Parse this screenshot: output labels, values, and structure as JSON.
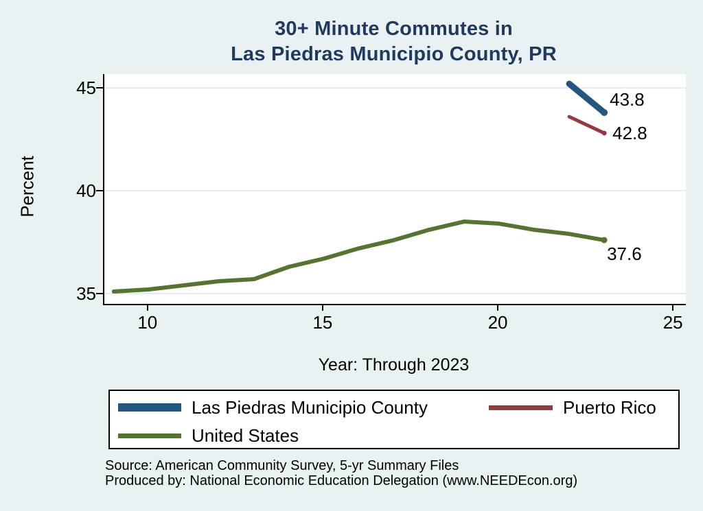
{
  "page": {
    "title_line1": "30+ Minute Commutes in",
    "title_line2": "Las Piedras Municipio County, PR",
    "footer_line1": "Source: American Community Survey, 5-yr Summary Files",
    "footer_line2": "Produced by: National Economic Education Delegation (www.NEEDEcon.org)",
    "colors": {
      "background": "#e9f1f2",
      "plot_background": "#ffffff",
      "grid": "#e3edf0",
      "title": "#1f3a5f",
      "axis": "#000000"
    }
  },
  "chart_data": {
    "type": "line",
    "title": "30+ Minute Commutes in Las Piedras Municipio County, PR",
    "xlabel": "Year: Through 2023",
    "ylabel": "Percent",
    "x_ticks": [
      10,
      15,
      20,
      25
    ],
    "y_ticks": [
      35,
      40,
      45
    ],
    "xlim": [
      8.73,
      25.33
    ],
    "ylim": [
      34.5,
      45.67
    ],
    "grid": "horizontal",
    "legend_position": "bottom",
    "series": [
      {
        "name": "Las Piedras Municipio County",
        "color": "#23577d",
        "line_width": 9,
        "marker_radius": 5,
        "x": [
          22,
          23
        ],
        "values": [
          45.2,
          43.8
        ],
        "end_label": "43.8"
      },
      {
        "name": "Puerto Rico",
        "color": "#97383d",
        "line_width": 5,
        "marker_radius": 3.5,
        "x": [
          22,
          23
        ],
        "values": [
          43.6,
          42.8
        ],
        "end_label": "42.8"
      },
      {
        "name": "United States",
        "color": "#55752f",
        "line_width": 6,
        "marker_radius": 4.5,
        "x": [
          9,
          10,
          11,
          12,
          13,
          14,
          15,
          16,
          17,
          18,
          19,
          20,
          21,
          22,
          23
        ],
        "values": [
          35.1,
          35.2,
          35.4,
          35.6,
          35.7,
          36.3,
          36.7,
          37.2,
          37.6,
          38.1,
          38.5,
          38.4,
          38.1,
          37.9,
          37.6
        ],
        "end_label": "37.6"
      }
    ]
  }
}
